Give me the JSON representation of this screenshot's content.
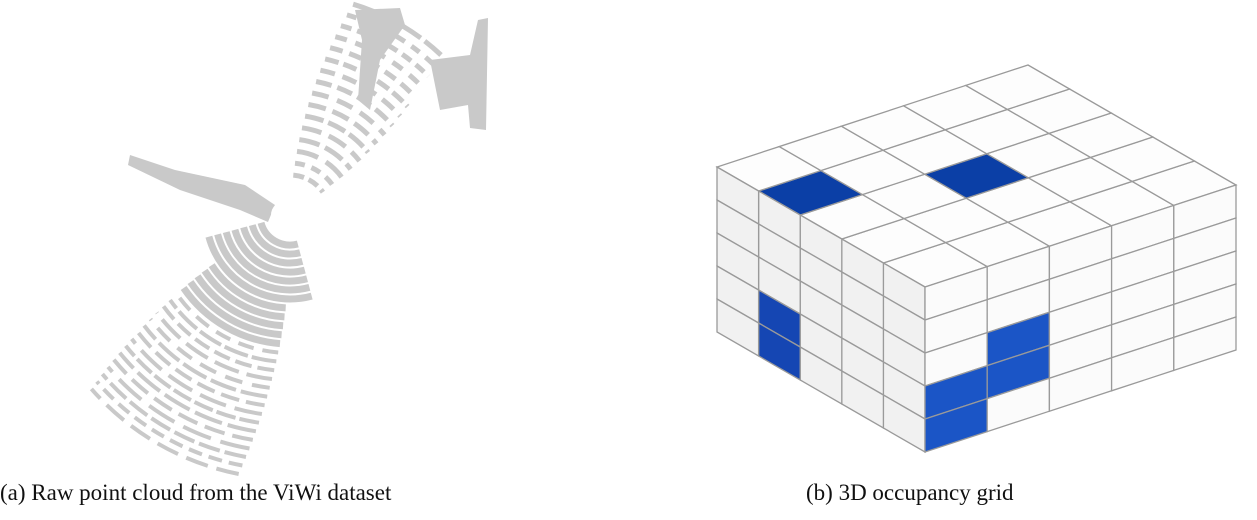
{
  "figures": [
    {
      "caption": "(a) Raw point cloud from the ViWi dataset"
    },
    {
      "caption": "(b) 3D occupancy grid"
    }
  ]
}
